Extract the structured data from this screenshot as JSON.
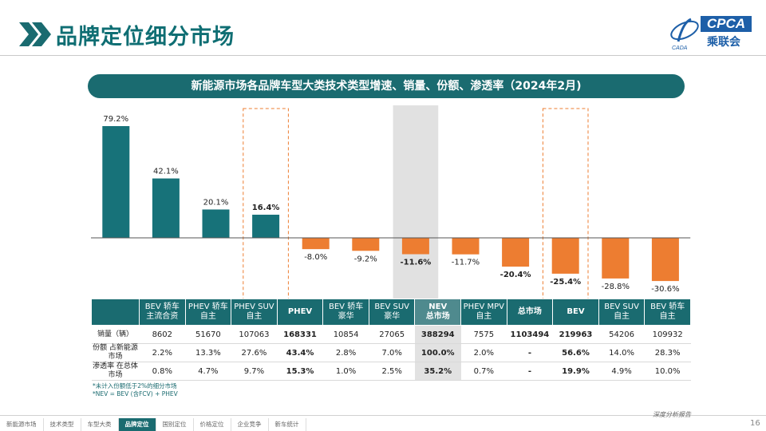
{
  "page_title": "品牌定位细分市场",
  "logo": {
    "text": "CPCA",
    "cn": "乘联会"
  },
  "subtitle": "新能源市场各品牌车型大类技术类型增速、销量、份额、渗透率（2024年2月)",
  "colors": {
    "teal": "#177279",
    "orange": "#ed7d31",
    "dark_teal": "#1a6b70"
  },
  "chart_data": {
    "type": "bar",
    "categories": [
      "BEV 轿车 主流合资",
      "PHEV 轿车 自主",
      "PHEV SUV 自主",
      "PHEV",
      "BEV 轿车 豪华",
      "BEV SUV 豪华",
      "NEV 总市场",
      "PHEV MPV 自主",
      "总市场",
      "BEV",
      "BEV SUV 自主",
      "BEV 轿车 自主"
    ],
    "values": [
      79.2,
      42.1,
      20.1,
      16.4,
      -8.0,
      -9.2,
      -11.6,
      -11.7,
      -20.4,
      -25.4,
      -28.8,
      -30.6
    ],
    "labels": [
      "79.2%",
      "42.1%",
      "20.1%",
      "16.4%",
      "-8.0%",
      "-9.2%",
      "-11.6%",
      "-11.7%",
      "-20.4%",
      "-25.4%",
      "-28.8%",
      "-30.6%"
    ],
    "highlight_bold": [
      3,
      6,
      8,
      9
    ],
    "dashed_box": [
      3,
      9
    ],
    "shaded": [
      6
    ],
    "ylim": [
      -35,
      85
    ]
  },
  "table": {
    "headers": [
      [
        "BEV 轿车",
        "主流合资"
      ],
      [
        "PHEV 轿车",
        "自主"
      ],
      [
        "PHEV SUV",
        "自主"
      ],
      [
        "PHEV"
      ],
      [
        "BEV 轿车",
        "豪华"
      ],
      [
        "BEV SUV",
        "豪华"
      ],
      [
        "NEV",
        "总市场"
      ],
      [
        "PHEV MPV",
        "自主"
      ],
      [
        "总市场"
      ],
      [
        "BEV"
      ],
      [
        "BEV SUV",
        "自主"
      ],
      [
        "BEV 轿车",
        "自主"
      ]
    ],
    "rows": [
      {
        "label": "销量（辆）",
        "values": [
          "8602",
          "51670",
          "107063",
          "168331",
          "10854",
          "27065",
          "388294",
          "7575",
          "1103494",
          "219963",
          "54206",
          "109932"
        ]
      },
      {
        "label": "份额 占新能源市场",
        "values": [
          "2.2%",
          "13.3%",
          "27.6%",
          "43.4%",
          "2.8%",
          "7.0%",
          "100.0%",
          "2.0%",
          "-",
          "56.6%",
          "14.0%",
          "28.3%"
        ]
      },
      {
        "label": "渗透率 在总体市场",
        "values": [
          "0.8%",
          "4.7%",
          "9.7%",
          "15.3%",
          "1.0%",
          "2.5%",
          "35.2%",
          "0.7%",
          "-",
          "19.9%",
          "4.9%",
          "10.0%"
        ]
      }
    ]
  },
  "footnotes": [
    "*未计入份额低于2%的细分市场",
    "*NEV = BEV (含FCV) + PHEV"
  ],
  "footer_slogan": "深度分析报告",
  "page_number": "16",
  "nav": [
    "新能源市场",
    "技术类型",
    "车型大类",
    "品牌定位",
    "国别定位",
    "价格定位",
    "企业竞争",
    "新车统计"
  ],
  "nav_active_index": 3
}
